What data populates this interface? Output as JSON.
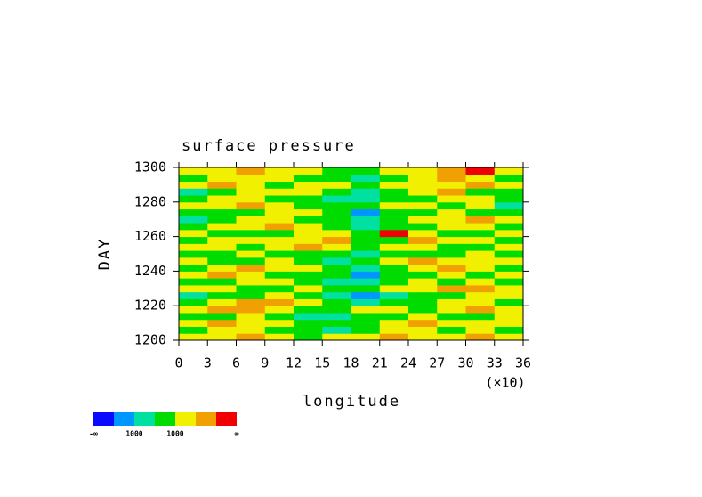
{
  "chart_data": {
    "type": "shaded",
    "title": "surface pressure",
    "xlabel": "longitude",
    "ylabel": "DAY",
    "x_scale_label": "(×10)",
    "xlim": [
      0,
      36
    ],
    "xticks": [
      0,
      3,
      6,
      9,
      12,
      15,
      18,
      21,
      24,
      27,
      30,
      33,
      36
    ],
    "ylim": [
      1200,
      1300
    ],
    "yticks": [
      1200,
      1220,
      1240,
      1260,
      1280,
      1300
    ],
    "colorbar": {
      "colors": [
        "#0a0aff",
        "#0096ff",
        "#00e0a0",
        "#00dc00",
        "#f0f000",
        "#f0a000",
        "#f00000"
      ],
      "labels": [
        "-∞",
        "1000",
        "1000",
        "∞"
      ]
    },
    "field": [
      [
        4,
        4,
        5,
        4,
        3,
        4,
        4,
        5,
        4,
        4,
        5,
        4
      ],
      [
        3,
        4,
        4,
        3,
        3,
        2,
        3,
        4,
        4,
        3,
        4,
        3
      ],
      [
        4,
        5,
        4,
        4,
        3,
        3,
        3,
        4,
        5,
        4,
        4,
        4
      ],
      [
        3,
        3,
        4,
        3,
        2,
        2,
        3,
        3,
        4,
        3,
        3,
        4
      ],
      [
        4,
        5,
        5,
        4,
        3,
        3,
        4,
        4,
        3,
        4,
        5,
        4
      ],
      [
        3,
        4,
        5,
        5,
        4,
        3,
        2,
        3,
        3,
        4,
        4,
        3
      ],
      [
        2,
        3,
        3,
        4,
        3,
        2,
        1,
        2,
        3,
        3,
        4,
        4
      ],
      [
        4,
        4,
        3,
        3,
        4,
        3,
        3,
        4,
        4,
        5,
        5,
        4
      ],
      [
        3,
        3,
        4,
        4,
        3,
        2,
        2,
        3,
        4,
        3,
        4,
        3
      ],
      [
        4,
        5,
        4,
        3,
        3,
        3,
        1,
        3,
        3,
        4,
        3,
        4
      ],
      [
        3,
        4,
        5,
        4,
        4,
        3,
        2,
        3,
        4,
        5,
        4,
        3
      ],
      [
        4,
        3,
        3,
        4,
        3,
        2,
        3,
        4,
        5,
        4,
        4,
        4
      ],
      [
        3,
        3,
        4,
        3,
        3,
        3,
        2,
        3,
        3,
        3,
        4,
        3
      ],
      [
        4,
        4,
        3,
        4,
        5,
        4,
        3,
        4,
        4,
        3,
        3,
        4
      ],
      [
        3,
        4,
        4,
        4,
        4,
        5,
        3,
        3,
        5,
        4,
        4,
        3
      ],
      [
        4,
        3,
        3,
        3,
        4,
        4,
        3,
        6,
        4,
        3,
        3,
        4
      ],
      [
        3,
        4,
        4,
        5,
        4,
        3,
        2,
        3,
        3,
        4,
        4,
        3
      ],
      [
        2,
        3,
        4,
        4,
        3,
        3,
        2,
        3,
        4,
        4,
        5,
        4
      ],
      [
        3,
        3,
        3,
        4,
        4,
        3,
        1,
        3,
        3,
        4,
        3,
        3
      ],
      [
        4,
        4,
        5,
        4,
        3,
        3,
        3,
        4,
        4,
        3,
        4,
        2
      ],
      [
        3,
        4,
        4,
        3,
        3,
        2,
        2,
        3,
        3,
        4,
        4,
        3
      ],
      [
        2,
        3,
        4,
        4,
        4,
        3,
        2,
        3,
        4,
        5,
        3,
        3
      ],
      [
        4,
        5,
        4,
        3,
        4,
        4,
        3,
        4,
        4,
        4,
        5,
        4
      ],
      [
        3,
        4,
        4,
        4,
        3,
        3,
        2,
        3,
        4,
        5,
        4,
        3
      ],
      [
        4,
        4,
        5,
        4,
        4,
        3,
        3,
        4,
        4,
        5,
        6,
        4
      ]
    ]
  }
}
